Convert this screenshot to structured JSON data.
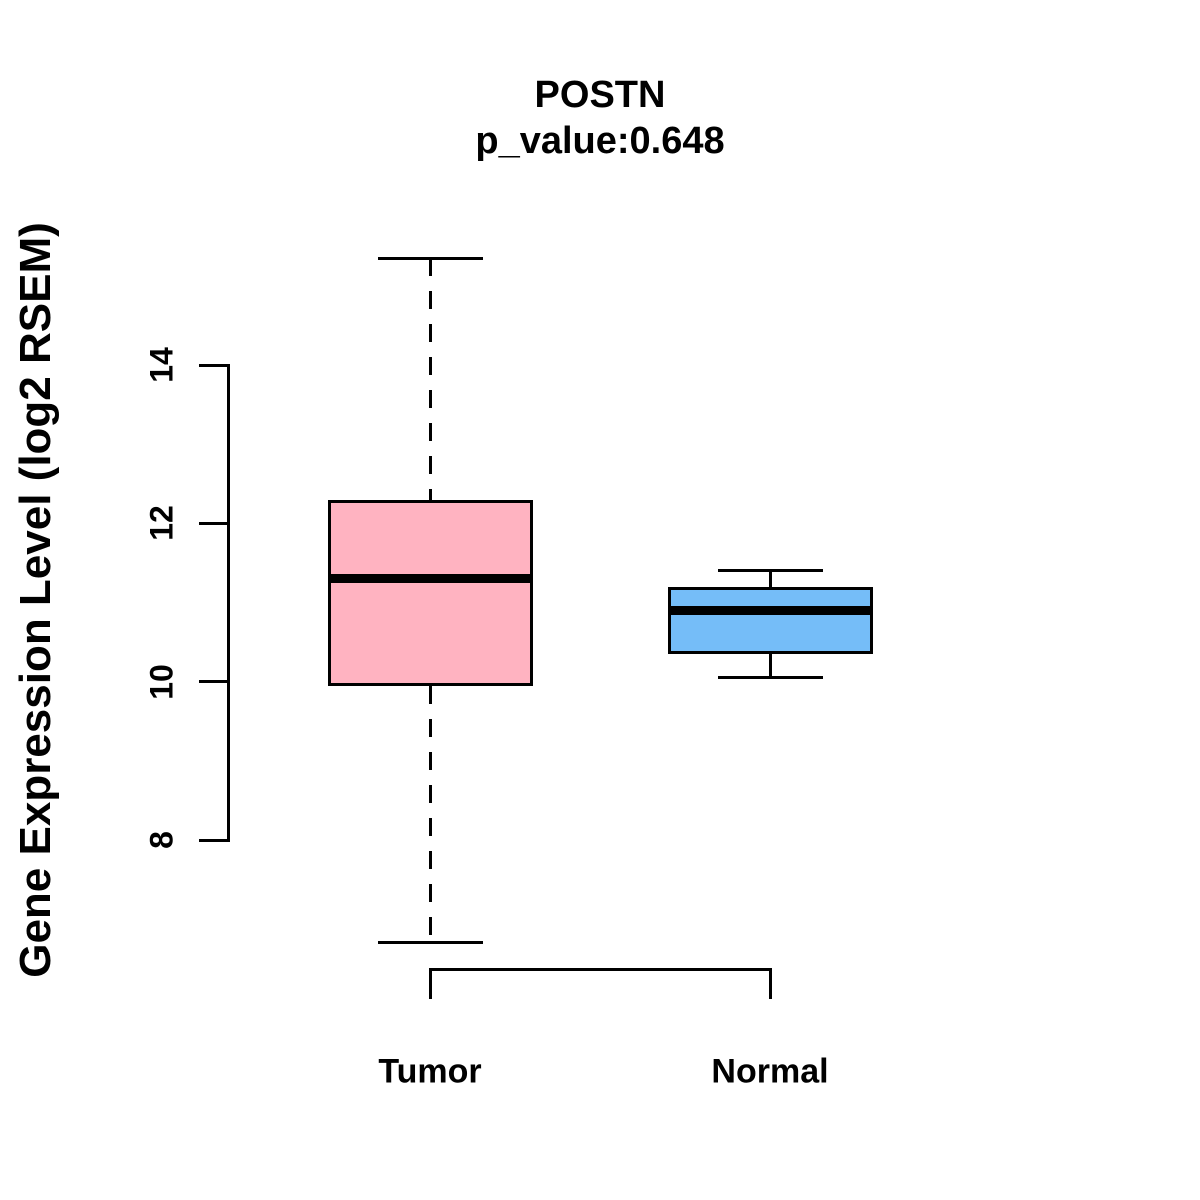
{
  "figure": {
    "title": "POSTN",
    "subtitle": "p_value:0.648",
    "ylabel": "Gene Expression Level (log2 RSEM)"
  },
  "colors": {
    "tumor_fill": "#FFB3C1",
    "normal_fill": "#75BDF8",
    "line": "#000000",
    "background": "#FFFFFF"
  },
  "chart_data": {
    "type": "boxplot",
    "title": "POSTN",
    "subtitle": "p_value:0.648",
    "xlabel": "",
    "ylabel": "Gene Expression Level (log2 RSEM)",
    "categories": [
      "Tumor",
      "Normal"
    ],
    "yticks": [
      8,
      10,
      12,
      14
    ],
    "ylim": [
      6.3,
      15.7
    ],
    "grid": false,
    "legend": "none",
    "series": [
      {
        "name": "Tumor",
        "color": "#FFB3C1",
        "whisker_low": 6.7,
        "q1": 9.95,
        "median": 11.3,
        "q3": 12.3,
        "whisker_high": 15.35
      },
      {
        "name": "Normal",
        "color": "#75BDF8",
        "whisker_low": 10.05,
        "q1": 10.35,
        "median": 10.9,
        "q3": 11.2,
        "whisker_high": 11.4
      }
    ]
  }
}
